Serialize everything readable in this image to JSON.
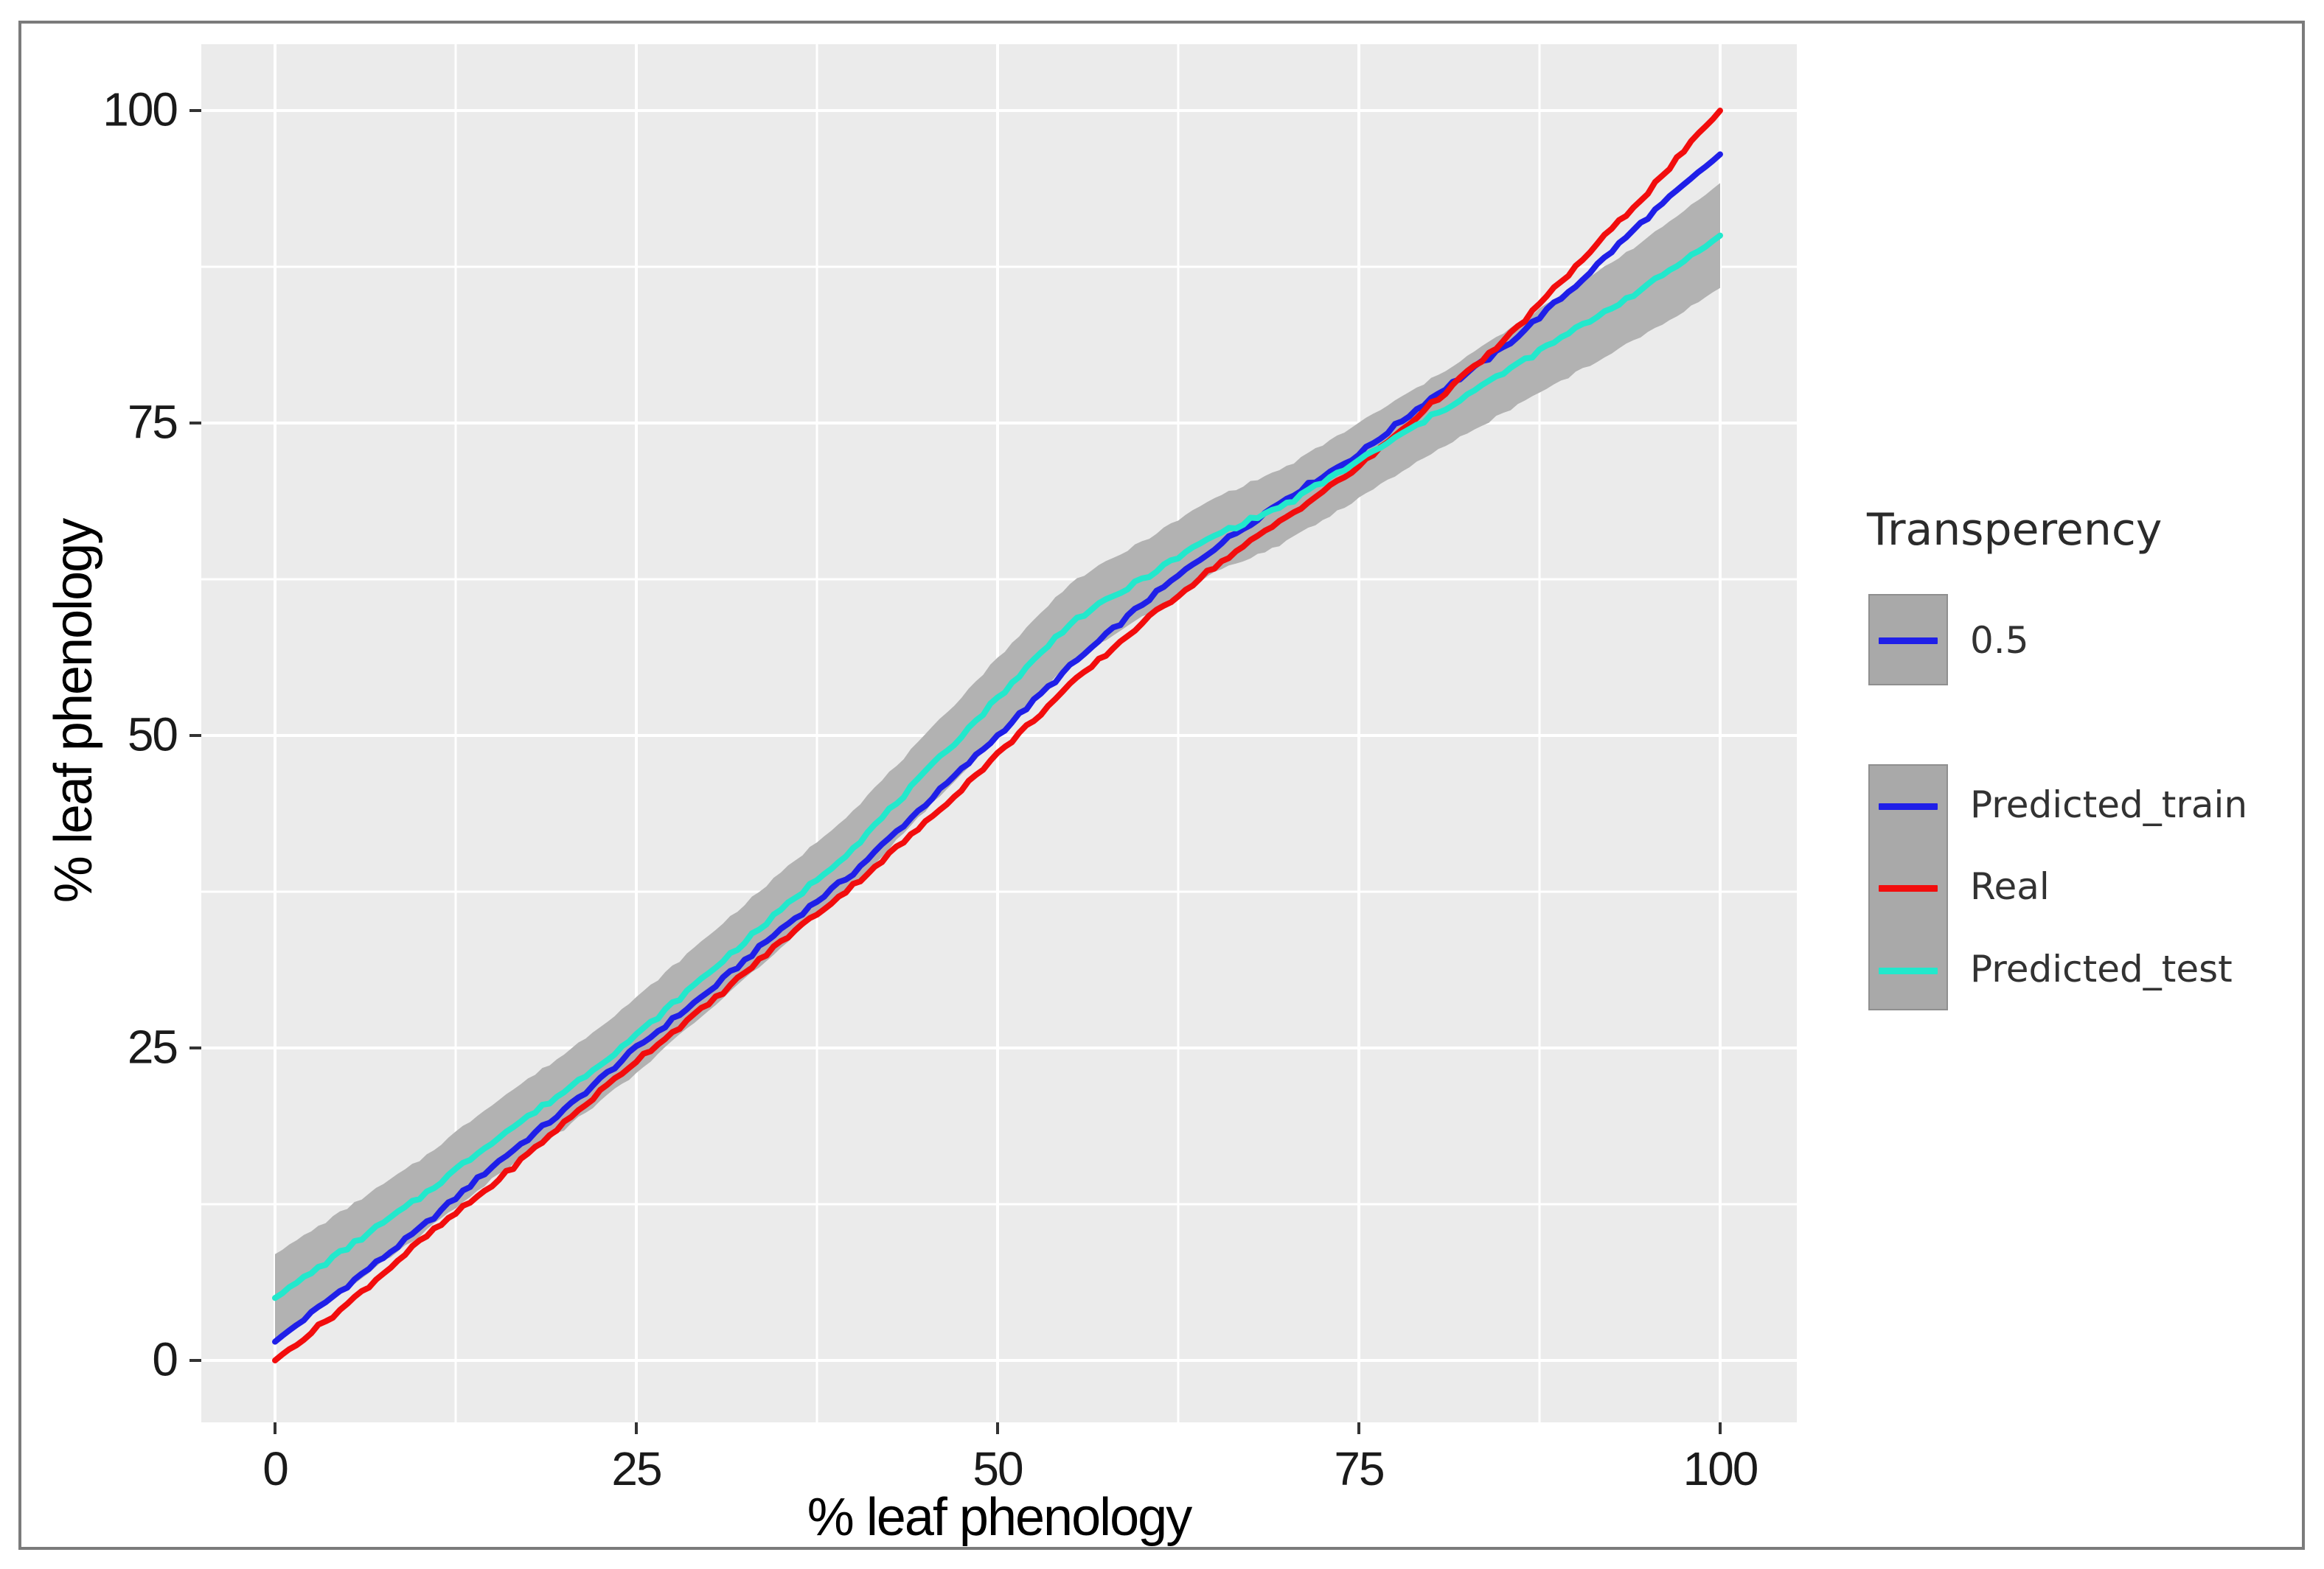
{
  "chart_data": {
    "type": "line",
    "title": "",
    "xlabel": "% leaf phenology",
    "ylabel": "% leaf phenology",
    "xlim": [
      0,
      100
    ],
    "ylim": [
      0,
      100
    ],
    "x_ticks": [
      0,
      25,
      50,
      75,
      100
    ],
    "y_ticks": [
      0,
      25,
      50,
      75,
      100
    ],
    "grid": {
      "major": "#ffffff",
      "minor": "#ffffff",
      "panel_bg": "#ebebeb",
      "tick_color": "#333333"
    },
    "legend": {
      "position": "right",
      "title": "Transperency",
      "alpha_label": "0.5",
      "key_fill": "#a9a9a9"
    },
    "x": [
      0,
      5,
      10,
      15,
      20,
      25,
      30,
      35,
      40,
      45,
      50,
      55,
      60,
      65,
      70,
      75,
      80,
      85,
      90,
      95,
      100
    ],
    "series": [
      {
        "name": "Predicted_train",
        "color": "#1f1fe8",
        "values": [
          1.5,
          6,
          10.5,
          15.5,
          20,
          25,
          29.5,
          34.5,
          39,
          44.5,
          50,
          55.5,
          60.5,
          65,
          69,
          72.5,
          77,
          81,
          86,
          91.5,
          96.5
        ]
      },
      {
        "name": "Real",
        "color": "#f20d0d",
        "values": [
          0,
          4.5,
          9.5,
          14,
          19,
          24,
          28.5,
          33.5,
          38,
          43,
          48.5,
          54,
          59,
          63.5,
          67.5,
          71.5,
          76.5,
          81.5,
          87.5,
          93.5,
          100
        ]
      },
      {
        "name": "Predicted_test",
        "color": "#22e8cc",
        "values": [
          5,
          9,
          13,
          17.5,
          21.5,
          26,
          31,
          36,
          41,
          47,
          53,
          59,
          62.5,
          66,
          68.5,
          72,
          75.5,
          79,
          82.5,
          86,
          90
        ]
      }
    ],
    "ribbon": {
      "around": "Predicted_test",
      "color": "#b2b2b2",
      "alpha_label": "0.5",
      "half_width": [
        3.5,
        3.2,
        3,
        3,
        3,
        3,
        3,
        3,
        3,
        3,
        3.2,
        3.2,
        3,
        3,
        3,
        3,
        3,
        3.2,
        3.5,
        3.8,
        4.2
      ]
    }
  },
  "figure": {
    "border_color": "#7b7b7b",
    "background": "#ffffff"
  }
}
